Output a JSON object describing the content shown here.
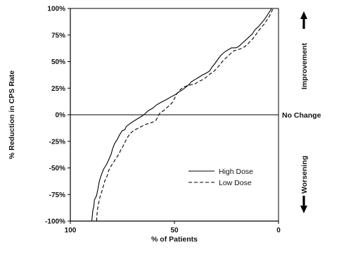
{
  "chart_data": {
    "type": "line",
    "xlabel": "% of Patients",
    "ylabel": "% Reduction in CPS Rate",
    "xlim": [
      100,
      0
    ],
    "ylim": [
      -100,
      100
    ],
    "x_ticks": [
      100,
      50,
      0
    ],
    "x_tick_labels": [
      "100",
      "50",
      "0"
    ],
    "y_ticks": [
      100,
      75,
      50,
      25,
      0,
      -25,
      -50,
      -75,
      -100
    ],
    "y_tick_labels": [
      "100%",
      "75%",
      "50%",
      "25%",
      "0%",
      "-25%",
      "-50%",
      "-75%",
      "-100%"
    ],
    "reference_line": {
      "y": 0,
      "label": "No Change"
    },
    "side_labels": {
      "top": "Improvement",
      "bottom": "Worsening"
    },
    "legend_position": "lower-right",
    "grid": false,
    "series": [
      {
        "name": "High Dose",
        "line_style": "solid",
        "color": "#000000",
        "points": [
          [
            89.7,
            -100
          ],
          [
            89.5,
            -96
          ],
          [
            89.2,
            -90
          ],
          [
            88.7,
            -86
          ],
          [
            88.4,
            -80
          ],
          [
            87.4,
            -76
          ],
          [
            86.7,
            -69
          ],
          [
            86.0,
            -62
          ],
          [
            85.0,
            -56
          ],
          [
            84.0,
            -51
          ],
          [
            82.7,
            -47
          ],
          [
            81.7,
            -43
          ],
          [
            80.4,
            -37
          ],
          [
            79.7,
            -32
          ],
          [
            78.7,
            -27
          ],
          [
            77.4,
            -23
          ],
          [
            76.4,
            -19
          ],
          [
            75.1,
            -15
          ],
          [
            73.8,
            -14
          ],
          [
            73.1,
            -11
          ],
          [
            71.8,
            -9
          ],
          [
            70.4,
            -7
          ],
          [
            68.8,
            -5
          ],
          [
            67.1,
            -3
          ],
          [
            65.4,
            -1
          ],
          [
            64.1,
            1
          ],
          [
            62.5,
            4
          ],
          [
            60.5,
            6
          ],
          [
            58.8,
            9
          ],
          [
            57.1,
            11
          ],
          [
            55.1,
            13
          ],
          [
            53.2,
            15
          ],
          [
            51.5,
            17
          ],
          [
            49.5,
            19
          ],
          [
            48.2,
            21
          ],
          [
            46.5,
            23
          ],
          [
            45.2,
            25
          ],
          [
            43.2,
            28
          ],
          [
            41.9,
            31
          ],
          [
            40.2,
            33
          ],
          [
            38.5,
            35
          ],
          [
            36.9,
            37
          ],
          [
            34.9,
            39
          ],
          [
            33.2,
            41
          ],
          [
            31.9,
            45
          ],
          [
            30.6,
            48
          ],
          [
            29.2,
            52
          ],
          [
            27.6,
            56
          ],
          [
            25.9,
            59
          ],
          [
            24.3,
            61
          ],
          [
            22.6,
            63
          ],
          [
            20.6,
            63
          ],
          [
            19.3,
            64
          ],
          [
            17.6,
            67
          ],
          [
            15.9,
            70
          ],
          [
            14.3,
            73
          ],
          [
            12.6,
            76
          ],
          [
            11.3,
            80
          ],
          [
            9.6,
            83
          ],
          [
            8.3,
            86
          ],
          [
            7.0,
            89
          ],
          [
            5.6,
            93
          ],
          [
            4.3,
            97
          ],
          [
            3.3,
            100
          ]
        ]
      },
      {
        "name": "Low Dose",
        "line_style": "dashed",
        "color": "#000000",
        "points": [
          [
            87.4,
            -100
          ],
          [
            87.2,
            -94
          ],
          [
            86.9,
            -88
          ],
          [
            86.4,
            -83
          ],
          [
            85.7,
            -77
          ],
          [
            84.7,
            -71
          ],
          [
            84.0,
            -66
          ],
          [
            83.4,
            -62
          ],
          [
            82.4,
            -58
          ],
          [
            81.7,
            -53
          ],
          [
            80.7,
            -49
          ],
          [
            79.7,
            -46
          ],
          [
            78.7,
            -43
          ],
          [
            77.7,
            -40
          ],
          [
            76.7,
            -37
          ],
          [
            75.7,
            -33
          ],
          [
            74.8,
            -30
          ],
          [
            73.8,
            -26
          ],
          [
            72.8,
            -22
          ],
          [
            71.4,
            -18
          ],
          [
            69.8,
            -15
          ],
          [
            67.8,
            -13
          ],
          [
            65.8,
            -11
          ],
          [
            63.8,
            -9
          ],
          [
            62.1,
            -8
          ],
          [
            60.5,
            -7
          ],
          [
            58.8,
            -5
          ],
          [
            57.8,
            -1
          ],
          [
            56.8,
            2
          ],
          [
            55.1,
            4
          ],
          [
            53.5,
            7
          ],
          [
            52.2,
            9
          ],
          [
            50.8,
            12
          ],
          [
            49.8,
            16
          ],
          [
            48.8,
            20
          ],
          [
            47.5,
            23
          ],
          [
            45.8,
            26
          ],
          [
            44.2,
            27
          ],
          [
            42.5,
            28
          ],
          [
            40.2,
            29
          ],
          [
            38.5,
            31
          ],
          [
            36.5,
            33
          ],
          [
            34.9,
            35
          ],
          [
            33.2,
            38
          ],
          [
            31.6,
            40
          ],
          [
            29.9,
            43
          ],
          [
            28.2,
            47
          ],
          [
            26.6,
            51
          ],
          [
            24.9,
            54
          ],
          [
            23.3,
            57
          ],
          [
            21.6,
            60
          ],
          [
            19.9,
            61
          ],
          [
            18.3,
            62
          ],
          [
            16.3,
            64
          ],
          [
            14.6,
            67
          ],
          [
            12.6,
            71
          ],
          [
            11.0,
            75
          ],
          [
            9.6,
            79
          ],
          [
            8.3,
            82
          ],
          [
            7.0,
            85
          ],
          [
            5.6,
            89
          ],
          [
            4.3,
            93
          ],
          [
            3.3,
            97
          ],
          [
            2.6,
            100
          ]
        ]
      }
    ]
  }
}
